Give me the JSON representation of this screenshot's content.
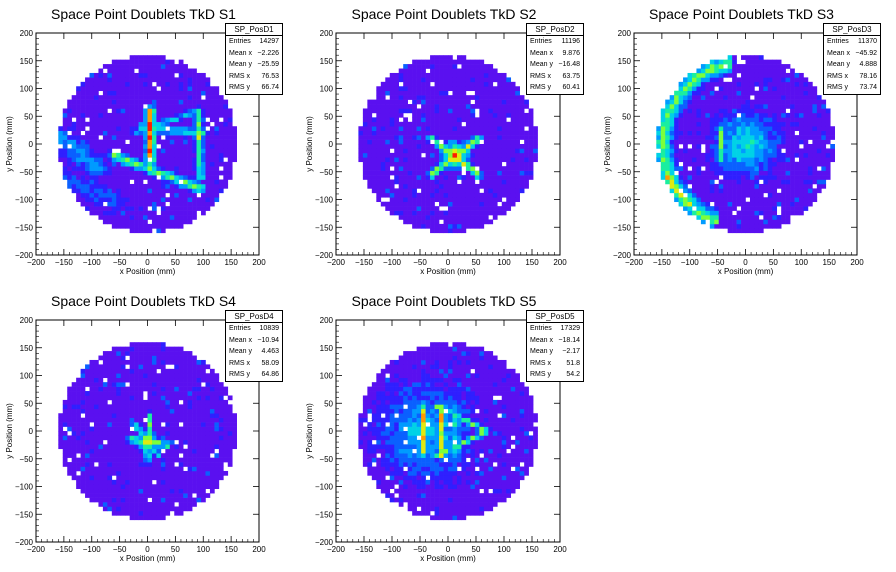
{
  "colors": {
    "palette": [
      "#4a00d0",
      "#2f1fff",
      "#0a60ff",
      "#009bff",
      "#00d2e6",
      "#1aeea0",
      "#7cff3a",
      "#e0ea10",
      "#ff9a00",
      "#ff1a00"
    ],
    "background_fill": "#5a10f0",
    "frame": "#000000"
  },
  "chart_data": [
    {
      "type": "heatmap",
      "title": "Space Point Doublets TkD S1",
      "xlabel": "x Position (mm)",
      "ylabel": "y Position (mm)",
      "xlim": [
        -200,
        200
      ],
      "ylim": [
        -200,
        200
      ],
      "xticks": [
        -200,
        -150,
        -100,
        -50,
        0,
        50,
        100,
        150,
        200
      ],
      "yticks": [
        -200,
        -150,
        -100,
        -50,
        0,
        50,
        100,
        150,
        200
      ],
      "fill_radius": 160,
      "stats": {
        "name": "SP_PosD1",
        "rows": [
          [
            "Entries",
            "14297"
          ],
          [
            "Mean x",
            "-2.226"
          ],
          [
            "Mean y",
            "-25.59"
          ],
          [
            "RMS x",
            "76.53"
          ],
          [
            "RMS y",
            "66.74"
          ]
        ]
      },
      "features": [
        {
          "type": "line",
          "x1": 5,
          "y1": 60,
          "x2": 5,
          "y2": -30,
          "width": 12,
          "level": 9
        },
        {
          "type": "line",
          "x1": 90,
          "y1": 60,
          "x2": 95,
          "y2": -60,
          "width": 10,
          "level": 6
        },
        {
          "type": "line",
          "x1": -60,
          "y1": -20,
          "x2": 95,
          "y2": -80,
          "width": 12,
          "level": 6
        },
        {
          "type": "line",
          "x1": -10,
          "y1": 30,
          "x2": 100,
          "y2": 20,
          "width": 10,
          "level": 5
        },
        {
          "type": "line",
          "x1": -20,
          "y1": 20,
          "x2": 90,
          "y2": 60,
          "width": 8,
          "level": 4
        },
        {
          "type": "line",
          "x1": -160,
          "y1": 10,
          "x2": -90,
          "y2": -40,
          "width": 28,
          "level": 3
        },
        {
          "type": "line",
          "x1": -160,
          "y1": -60,
          "x2": -60,
          "y2": -100,
          "width": 24,
          "level": 2
        }
      ]
    },
    {
      "type": "heatmap",
      "title": "Space Point Doublets TkD S2",
      "xlabel": "x Position (mm)",
      "ylabel": "y Position (mm)",
      "xlim": [
        -200,
        200
      ],
      "ylim": [
        -200,
        200
      ],
      "xticks": [
        -200,
        -150,
        -100,
        -50,
        0,
        50,
        100,
        150,
        200
      ],
      "yticks": [
        -200,
        -150,
        -100,
        -50,
        0,
        50,
        100,
        150,
        200
      ],
      "fill_radius": 160,
      "stats": {
        "name": "SP_PosD2",
        "rows": [
          [
            "Entries",
            "11196"
          ],
          [
            "Mean x",
            "9.876"
          ],
          [
            "Mean y",
            "-16.48"
          ],
          [
            "RMS x",
            "63.75"
          ],
          [
            "RMS y",
            "60.41"
          ]
        ]
      },
      "features": [
        {
          "type": "line",
          "x1": -30,
          "y1": 10,
          "x2": 55,
          "y2": -55,
          "width": 9,
          "level": 7
        },
        {
          "type": "line",
          "x1": -30,
          "y1": -55,
          "x2": 55,
          "y2": 10,
          "width": 9,
          "level": 7
        },
        {
          "type": "blob",
          "x": 12,
          "y": -20,
          "r": 15,
          "level": 9
        }
      ]
    },
    {
      "type": "heatmap",
      "title": "Space Point Doublets TkD S3",
      "xlabel": "x Position (mm)",
      "ylabel": "y Position (mm)",
      "xlim": [
        -200,
        200
      ],
      "ylim": [
        -200,
        200
      ],
      "xticks": [
        -200,
        -150,
        -100,
        -50,
        0,
        50,
        100,
        150,
        200
      ],
      "yticks": [
        -200,
        -150,
        -100,
        -50,
        0,
        50,
        100,
        150,
        200
      ],
      "fill_radius": 160,
      "stats": {
        "name": "SP_PosD3",
        "rows": [
          [
            "Entries",
            "11370"
          ],
          [
            "Mean x",
            "-45.92"
          ],
          [
            "Mean y",
            "4.888"
          ],
          [
            "RMS x",
            "78.16"
          ],
          [
            "RMS y",
            "73.74"
          ]
        ]
      },
      "features": [
        {
          "type": "arc",
          "r": 148,
          "a1": 100,
          "a2": 250,
          "width": 22,
          "level": 6
        },
        {
          "type": "line",
          "x1": -45,
          "y1": 30,
          "x2": -45,
          "y2": -30,
          "width": 8,
          "level": 6
        },
        {
          "type": "blob",
          "x": 0,
          "y": 0,
          "r": 35,
          "level": 5
        },
        {
          "type": "line",
          "x1": -140,
          "y1": -60,
          "x2": -110,
          "y2": -100,
          "width": 14,
          "level": 8
        }
      ]
    },
    {
      "type": "heatmap",
      "title": "Space Point Doublets TkD S4",
      "xlabel": "x Position (mm)",
      "ylabel": "y Position (mm)",
      "xlim": [
        -200,
        200
      ],
      "ylim": [
        -200,
        200
      ],
      "xticks": [
        -200,
        -150,
        -100,
        -50,
        0,
        50,
        100,
        150,
        200
      ],
      "yticks": [
        -200,
        -150,
        -100,
        -50,
        0,
        50,
        100,
        150,
        200
      ],
      "fill_radius": 160,
      "stats": {
        "name": "SP_PosD4",
        "rows": [
          [
            "Entries",
            "10839"
          ],
          [
            "Mean x",
            "-10.94"
          ],
          [
            "Mean y",
            "4.463"
          ],
          [
            "RMS x",
            "58.09"
          ],
          [
            "RMS y",
            "64.86"
          ]
        ]
      },
      "features": [
        {
          "type": "line",
          "x1": -30,
          "y1": -15,
          "x2": 35,
          "y2": -25,
          "width": 8,
          "level": 7
        },
        {
          "type": "line",
          "x1": 5,
          "y1": 30,
          "x2": 0,
          "y2": -55,
          "width": 7,
          "level": 6
        },
        {
          "type": "line",
          "x1": -25,
          "y1": 15,
          "x2": 20,
          "y2": -45,
          "width": 7,
          "level": 5
        },
        {
          "type": "blob",
          "x": 0,
          "y": -20,
          "r": 12,
          "level": 8
        }
      ]
    },
    {
      "type": "heatmap",
      "title": "Space Point Doublets TkD S5",
      "xlabel": "x Position (mm)",
      "ylabel": "y Position (mm)",
      "xlim": [
        -200,
        200
      ],
      "ylim": [
        -200,
        200
      ],
      "xticks": [
        -200,
        -150,
        -100,
        -50,
        0,
        50,
        100,
        150,
        200
      ],
      "yticks": [
        -200,
        -150,
        -100,
        -50,
        0,
        50,
        100,
        150,
        200
      ],
      "fill_radius": 160,
      "stats": {
        "name": "SP_PosD5",
        "rows": [
          [
            "Entries",
            "17329"
          ],
          [
            "Mean x",
            "-18.14"
          ],
          [
            "Mean y",
            "-2.17"
          ],
          [
            "RMS x",
            "51.8"
          ],
          [
            "RMS y",
            "54.2"
          ]
        ]
      },
      "features": [
        {
          "type": "blob",
          "x": -40,
          "y": 0,
          "r": 50,
          "level": 4
        },
        {
          "type": "line",
          "x1": -45,
          "y1": 40,
          "x2": -45,
          "y2": -40,
          "width": 10,
          "level": 8
        },
        {
          "type": "line",
          "x1": -10,
          "y1": 45,
          "x2": -10,
          "y2": -45,
          "width": 8,
          "level": 9
        },
        {
          "type": "line",
          "x1": 15,
          "y1": 40,
          "x2": 15,
          "y2": -40,
          "width": 8,
          "level": 6
        },
        {
          "type": "line",
          "x1": -20,
          "y1": 45,
          "x2": 70,
          "y2": 0,
          "width": 7,
          "level": 6
        },
        {
          "type": "line",
          "x1": -20,
          "y1": -45,
          "x2": 70,
          "y2": 0,
          "width": 7,
          "level": 6
        }
      ]
    }
  ]
}
